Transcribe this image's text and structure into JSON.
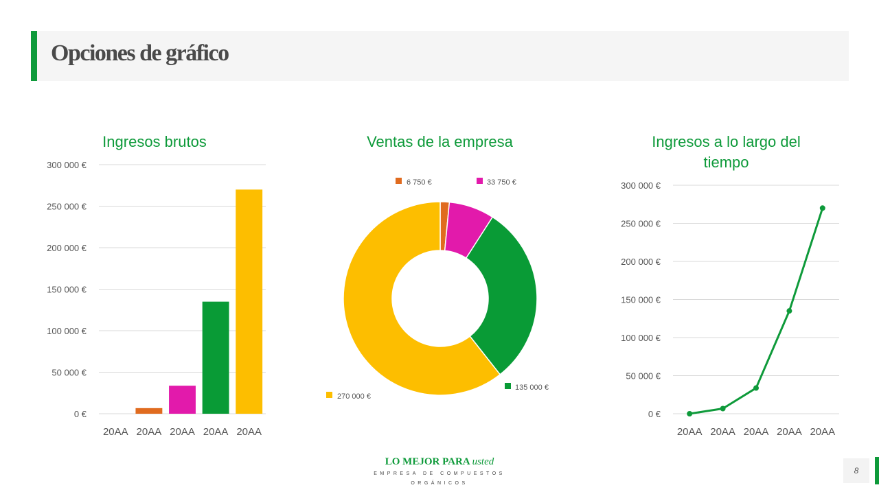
{
  "page": {
    "title": "Opciones de gráfico",
    "page_number": "8"
  },
  "footer": {
    "brand_main": "LO MEJOR PARA ",
    "brand_em": "usted",
    "tagline": "EMPRESA DE COMPUESTOS ORGÁNICOS"
  },
  "colors": {
    "accent": "#0e9a3a",
    "orange": "#e06b1f",
    "magenta": "#e21aab",
    "green": "#099b36",
    "gold": "#fdbe00"
  },
  "chart_data": [
    {
      "type": "bar",
      "title": "Ingresos brutos",
      "categories": [
        "20AA",
        "20AA",
        "20AA",
        "20AA",
        "20AA"
      ],
      "values": [
        0,
        6750,
        33750,
        135000,
        270000
      ],
      "bar_colors": [
        "#e06b1f",
        "#e06b1f",
        "#e21aab",
        "#099b36",
        "#fdbe00"
      ],
      "ylim": [
        0,
        300000
      ],
      "yticks": [
        0,
        50000,
        100000,
        150000,
        200000,
        250000,
        300000
      ],
      "ytick_labels": [
        "0 €",
        "50 000 €",
        "100 000 €",
        "150 000 €",
        "200 000 €",
        "250 000 €",
        "300 000 €"
      ],
      "grid": true
    },
    {
      "type": "pie",
      "title": "Ventas de la empresa",
      "donut": true,
      "values": [
        6750,
        33750,
        135000,
        270000
      ],
      "labels": [
        "6 750 €",
        "33 750 €",
        "135 000 €",
        "270 000 €"
      ],
      "colors": [
        "#e06b1f",
        "#e21aab",
        "#099b36",
        "#fdbe00"
      ]
    },
    {
      "type": "line",
      "title": "Ingresos a lo largo del tiempo",
      "categories": [
        "20AA",
        "20AA",
        "20AA",
        "20AA",
        "20AA"
      ],
      "values": [
        0,
        6750,
        33750,
        135000,
        270000
      ],
      "color": "#0e9a3a",
      "ylim": [
        0,
        300000
      ],
      "yticks": [
        0,
        50000,
        100000,
        150000,
        200000,
        250000,
        300000
      ],
      "ytick_labels": [
        "0 €",
        "50 000 €",
        "100 000 €",
        "150 000 €",
        "200 000 €",
        "250 000 €",
        "300 000 €"
      ],
      "grid": true
    }
  ]
}
